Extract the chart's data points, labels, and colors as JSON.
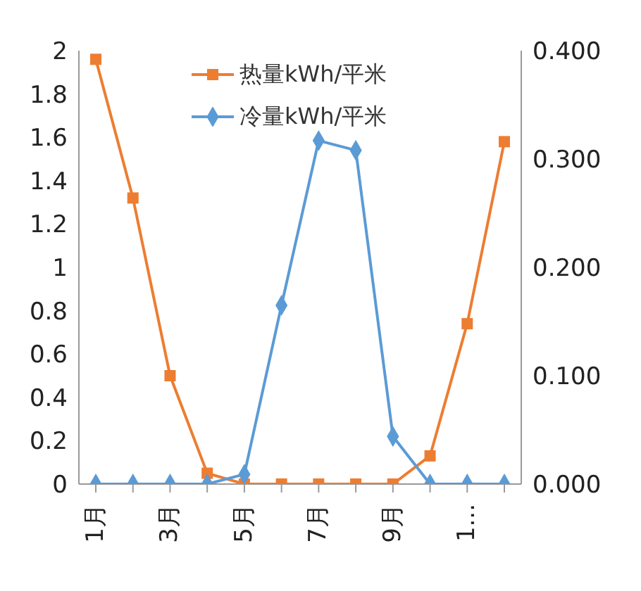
{
  "chart_data": {
    "type": "line",
    "categories": [
      "1月",
      null,
      "3月",
      null,
      "5月",
      null,
      "7月",
      null,
      "9月",
      null,
      "1...",
      null
    ],
    "series": [
      {
        "name": "热量kWh/平米",
        "color": "#ed7d31",
        "marker": "square",
        "values": [
          1.96,
          1.32,
          0.5,
          0.05,
          0,
          0,
          0,
          0,
          0,
          0.13,
          0.74,
          1.58
        ]
      },
      {
        "name": "冷量kWh/平米",
        "color": "#5b9bd5",
        "marker": "diamond",
        "axis": "y2",
        "values": [
          0,
          0,
          0,
          0,
          0.009,
          0.165,
          0.317,
          0.308,
          0.044,
          0,
          0,
          0
        ]
      }
    ],
    "ylim": [
      0,
      2
    ],
    "yticks": [
      0,
      0.2,
      0.4,
      0.6,
      0.8,
      1,
      1.2,
      1.4,
      1.6,
      1.8,
      2
    ],
    "y2lim": [
      0,
      0.4
    ],
    "y2ticks": [
      {
        "value": 0,
        "label": "0.000"
      },
      {
        "value": 0.1,
        "label": "0.100"
      },
      {
        "value": 0.2,
        "label": "0.200"
      },
      {
        "value": 0.3,
        "label": "0.300"
      },
      {
        "value": 0.4,
        "label": "0.400"
      }
    ],
    "grid": false,
    "legend": "top right"
  }
}
